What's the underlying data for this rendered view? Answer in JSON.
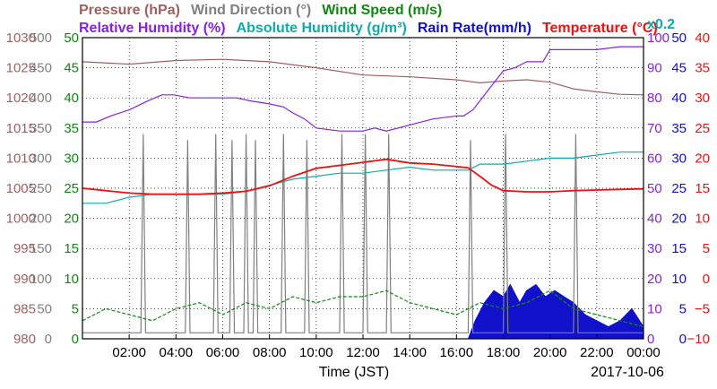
{
  "chart_data": {
    "type": "line",
    "header": {
      "line1": [
        {
          "text": "Pressure (hPa)",
          "color": "#a06060"
        },
        {
          "text": "Wind Direction (°)",
          "color": "#808080"
        },
        {
          "text": "Wind Speed (m/s)",
          "color": "#118811"
        }
      ],
      "line2": [
        {
          "text": "Relative Humidity (%)",
          "color": "#8822dd"
        },
        {
          "text": "Absolute Humidity (g/m³)",
          "color": "#11aaaa"
        },
        {
          "text": "Rain Rate(mm/h)",
          "color": "#1111cc"
        },
        {
          "text": "Temperature (°C)",
          "color": "#ee1111"
        }
      ],
      "multiplier": "x0.2"
    },
    "xlabel": "Time (JST)",
    "date_label": "2017-10-06",
    "x_ticks": [
      "02:00",
      "04:00",
      "06:00",
      "08:00",
      "10:00",
      "12:00",
      "14:00",
      "16:00",
      "18:00",
      "20:00",
      "22:00",
      "00:00"
    ],
    "x_range_hours": [
      0,
      24
    ],
    "axes": {
      "pressure": {
        "color": "#a06060",
        "range": [
          980,
          1030
        ],
        "ticks": [
          "1030",
          "1025",
          "1020",
          "1015",
          "1010",
          "1005",
          "1000",
          "995",
          "990",
          "985",
          "980"
        ]
      },
      "wind_direction": {
        "color": "#808080",
        "range": [
          0,
          500
        ],
        "ticks": [
          "500",
          "450",
          "400",
          "350",
          "300",
          "250",
          "200",
          "150",
          "100",
          "50",
          "0"
        ]
      },
      "wind_speed": {
        "color": "#118811",
        "range": [
          0,
          50
        ],
        "ticks": [
          "50",
          "45",
          "40",
          "35",
          "30",
          "25",
          "20",
          "15",
          "10",
          "5",
          "0"
        ]
      },
      "relative_humidity": {
        "color": "#8822dd",
        "range": [
          0,
          100
        ],
        "ticks": [
          "100",
          "90",
          "80",
          "70",
          "60",
          "50",
          "40",
          "30",
          "20",
          "10",
          "0"
        ]
      },
      "rain_rate": {
        "color": "#1111cc",
        "range": [
          0,
          50
        ],
        "ticks": [
          "50",
          "45",
          "40",
          "35",
          "30",
          "25",
          "20",
          "15",
          "10",
          "5",
          "0"
        ]
      },
      "temperature": {
        "color": "#ee1111",
        "range": [
          -10,
          40
        ],
        "ticks": [
          "40",
          "35",
          "30",
          "25",
          "20",
          "15",
          "10",
          "5",
          "0",
          "−5",
          "−10"
        ]
      }
    },
    "grid": true,
    "series": [
      {
        "name": "Pressure (hPa)",
        "axis": "pressure",
        "color": "#a06060",
        "x": [
          0,
          2,
          4,
          6,
          8,
          10,
          12,
          14,
          16,
          17,
          18,
          19,
          20,
          21,
          22,
          23,
          24
        ],
        "y": [
          1026.0,
          1025.6,
          1026.2,
          1026.4,
          1026.0,
          1025.0,
          1023.8,
          1023.5,
          1023.0,
          1022.5,
          1022.8,
          1023.0,
          1022.6,
          1021.5,
          1021.0,
          1020.6,
          1020.5
        ]
      },
      {
        "name": "Relative Humidity (%)",
        "axis": "relative_humidity",
        "color": "#8822dd",
        "x": [
          0,
          0.6,
          1.2,
          2,
          2.8,
          3.4,
          3.9,
          4.6,
          6,
          6.6,
          7.2,
          8,
          8.6,
          9,
          9.5,
          10,
          11,
          12,
          12.5,
          13,
          14,
          15,
          16,
          16.3,
          16.7,
          17,
          17.3,
          17.6,
          18,
          18.5,
          19,
          19.7,
          20,
          22,
          23,
          24
        ],
        "y": [
          72,
          72,
          74,
          76,
          79,
          81,
          81,
          80,
          80,
          80,
          79,
          78,
          77,
          75,
          73,
          70,
          69,
          69,
          70,
          69,
          71,
          73,
          74,
          74,
          76,
          79,
          82,
          85,
          89,
          90,
          92,
          92,
          96,
          96,
          97,
          97
        ]
      },
      {
        "name": "Absolute Humidity (g/m³)",
        "axis": "relative_humidity",
        "color": "#11aaaa",
        "x": [
          0,
          1,
          2,
          3,
          4,
          5,
          6,
          7,
          8,
          9,
          10,
          11,
          12,
          13,
          14,
          15,
          16,
          16.5,
          17,
          18,
          19,
          20,
          21,
          22,
          23,
          24
        ],
        "y": [
          45,
          45,
          47,
          48,
          48,
          48,
          48,
          49,
          51,
          53,
          54,
          55,
          55,
          56,
          57,
          56,
          56,
          56,
          58,
          58,
          59,
          60,
          60,
          61,
          62,
          62
        ]
      },
      {
        "name": "Temperature (°C)",
        "axis": "temperature",
        "color": "#ee1111",
        "x": [
          0,
          1,
          2,
          3,
          4,
          5,
          6,
          7,
          8,
          9,
          10,
          11,
          12,
          13,
          14,
          15,
          16,
          16.5,
          17,
          17.5,
          18,
          19,
          20,
          21,
          22,
          23,
          24
        ],
        "y": [
          15.0,
          14.6,
          14.2,
          14.0,
          14.0,
          14.0,
          14.2,
          14.5,
          15.4,
          17.0,
          18.3,
          18.8,
          19.3,
          19.8,
          19.2,
          19.0,
          18.6,
          18.4,
          17.0,
          15.5,
          14.6,
          14.4,
          14.4,
          14.6,
          14.7,
          14.8,
          14.9
        ]
      },
      {
        "name": "Wind Speed (m/s)",
        "axis": "wind_speed",
        "color": "#118811",
        "dashed": true,
        "x": [
          0,
          1,
          2,
          3,
          4,
          5,
          6,
          7,
          8,
          9,
          10,
          11,
          12,
          13,
          14,
          15,
          16,
          17,
          18,
          19,
          20,
          21,
          22,
          23,
          24
        ],
        "y": [
          3,
          5,
          4,
          3,
          5,
          6,
          4,
          6,
          5,
          7,
          6,
          7,
          7,
          8,
          6,
          5,
          4,
          6,
          5,
          6,
          8,
          5,
          4,
          3,
          2
        ]
      },
      {
        "name": "Wind Direction (°)",
        "axis": "wind_direction",
        "color": "#808080",
        "x": [
          0,
          2.5,
          2.6,
          2.7,
          4.4,
          4.5,
          4.6,
          5.6,
          5.7,
          5.8,
          6.3,
          6.4,
          6.5,
          6.9,
          7.0,
          7.1,
          7.3,
          7.4,
          7.5,
          8.5,
          8.6,
          8.7,
          9.5,
          9.6,
          9.7,
          11.0,
          11.1,
          11.2,
          12.0,
          12.1,
          12.2,
          13.0,
          13.1,
          13.2,
          16.5,
          16.6,
          16.7,
          18.0,
          18.1,
          18.2,
          21.0,
          21.1,
          21.2,
          24
        ],
        "y": [
          10,
          10,
          340,
          10,
          10,
          330,
          10,
          10,
          340,
          10,
          10,
          330,
          10,
          10,
          340,
          10,
          10,
          330,
          10,
          10,
          340,
          10,
          10,
          330,
          10,
          10,
          340,
          10,
          10,
          340,
          10,
          10,
          340,
          10,
          10,
          330,
          10,
          10,
          340,
          10,
          10,
          340,
          10,
          10
        ]
      },
      {
        "name": "Rain Rate(mm/h)",
        "axis": "rain_rate",
        "color": "#1111cc",
        "fill": true,
        "x": [
          16.5,
          16.8,
          17.2,
          17.6,
          18.0,
          18.3,
          18.7,
          19.0,
          19.4,
          19.8,
          20.2,
          20.6,
          21.0,
          21.5,
          22.0,
          22.5,
          23.0,
          23.5,
          24
        ],
        "y": [
          0,
          3,
          6,
          8,
          7,
          9,
          6,
          8,
          9,
          7,
          8,
          7,
          6,
          4,
          3,
          2,
          3,
          5,
          2
        ]
      }
    ]
  }
}
